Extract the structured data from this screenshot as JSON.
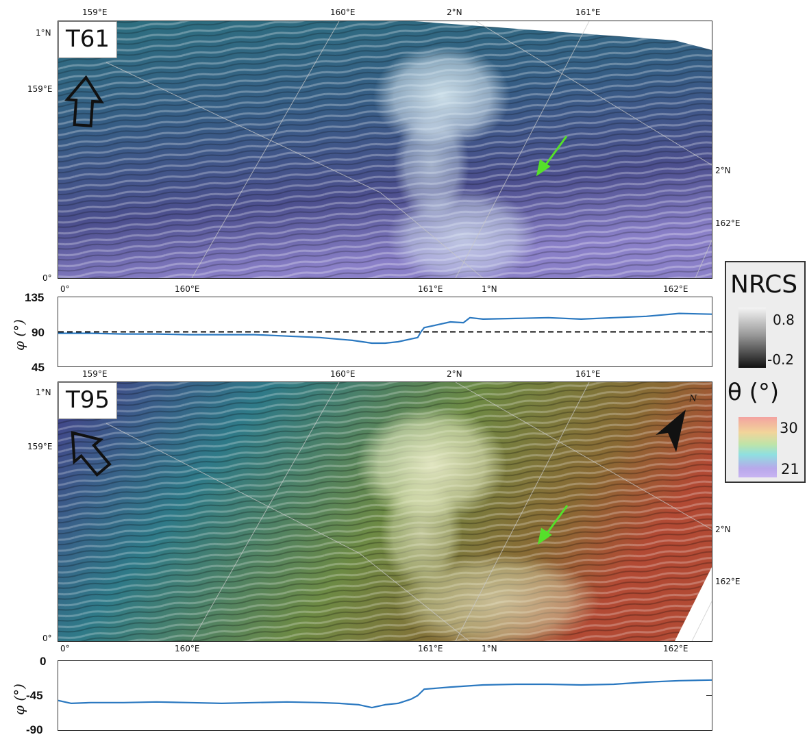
{
  "panels": [
    {
      "label": "T61",
      "top_ticks": [
        "159°E",
        "160°E",
        "2°N",
        "161°E"
      ],
      "left_ticks": [
        "1°N",
        "159°E",
        "0°"
      ],
      "right_ticks": [
        "2°N",
        "162°E"
      ],
      "bottom_ticks": [
        "0°",
        "160°E",
        "161°E",
        "1°N",
        "162°E"
      ],
      "gradient": [
        "#2e6f7a",
        "#3b5f86",
        "#5e5a9a",
        "#9b8dd0"
      ]
    },
    {
      "label": "T95",
      "top_ticks": [
        "159°E",
        "160°E",
        "2°N",
        "161°E"
      ],
      "left_ticks": [
        "1°N",
        "159°E",
        "0°"
      ],
      "right_ticks": [
        "2°N",
        "162°E"
      ],
      "bottom_ticks": [
        "0°",
        "160°E",
        "161°E",
        "1°N",
        "162°E"
      ],
      "north_label": "N",
      "gradient": [
        "#4a3f86",
        "#2e7a86",
        "#6a8a3a",
        "#c0563a"
      ]
    }
  ],
  "chart_data": [
    {
      "type": "line",
      "ylabel": "φ (°)",
      "ylim": [
        45,
        135
      ],
      "yticks": [
        "135",
        "90",
        "45"
      ],
      "reference_line": 90,
      "series": [
        {
          "x": [
            0,
            0.05,
            0.1,
            0.15,
            0.2,
            0.25,
            0.3,
            0.35,
            0.4,
            0.45,
            0.48,
            0.5,
            0.52,
            0.54,
            0.55,
            0.555,
            0.56,
            0.58,
            0.6,
            0.62,
            0.63,
            0.65,
            0.7,
            0.75,
            0.8,
            0.85,
            0.9,
            0.95,
            1.0
          ],
          "values": [
            88,
            88,
            87,
            87,
            86,
            86,
            86,
            84,
            82,
            78,
            74,
            74,
            76,
            80,
            82,
            90,
            96,
            100,
            104,
            103,
            110,
            108,
            109,
            110,
            108,
            110,
            112,
            116,
            115
          ]
        }
      ]
    },
    {
      "type": "line",
      "ylabel": "φ (°)",
      "ylim": [
        -90,
        0
      ],
      "yticks": [
        "0",
        "-45",
        "-90"
      ],
      "series": [
        {
          "x": [
            0,
            0.02,
            0.05,
            0.1,
            0.15,
            0.2,
            0.25,
            0.3,
            0.35,
            0.4,
            0.43,
            0.46,
            0.48,
            0.5,
            0.52,
            0.54,
            0.55,
            0.56,
            0.6,
            0.65,
            0.7,
            0.75,
            0.8,
            0.85,
            0.9,
            0.95,
            1.0
          ],
          "values": [
            -52,
            -56,
            -55,
            -55,
            -54,
            -55,
            -56,
            -55,
            -54,
            -55,
            -56,
            -58,
            -62,
            -58,
            -56,
            -50,
            -45,
            -36,
            -33,
            -30,
            -29,
            -29,
            -30,
            -29,
            -26,
            -24,
            -23
          ]
        }
      ]
    }
  ],
  "legend": {
    "nrcs_title": "NRCS",
    "nrcs_max": "0.8",
    "nrcs_min": "-0.2",
    "theta_title": "θ (°)",
    "theta_max": "30",
    "theta_min": "21"
  }
}
